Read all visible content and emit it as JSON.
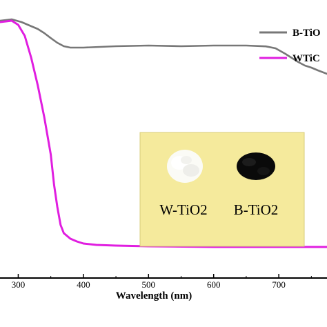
{
  "chart_data": {
    "type": "line",
    "title": "",
    "xlabel": "Wavelength (nm)",
    "ylabel": "",
    "xlim": [
      272,
      774
    ],
    "ylim": [
      0,
      1
    ],
    "x_ticks": [
      300,
      400,
      500,
      600,
      700
    ],
    "grid": false,
    "legend": {
      "placement": "top-right"
    },
    "series": [
      {
        "name": "B-TiO",
        "color": "#777777",
        "x": [
          272,
          290,
          305,
          320,
          330,
          340,
          350,
          360,
          370,
          380,
          400,
          450,
          500,
          550,
          600,
          650,
          680,
          695,
          710,
          720,
          730,
          740,
          750,
          760,
          774
        ],
        "y": [
          0.925,
          0.93,
          0.92,
          0.905,
          0.895,
          0.88,
          0.862,
          0.845,
          0.8325,
          0.8275,
          0.8275,
          0.8325,
          0.835,
          0.8325,
          0.835,
          0.835,
          0.832,
          0.825,
          0.805,
          0.79,
          0.775,
          0.7625,
          0.755,
          0.745,
          0.7325
        ]
      },
      {
        "name": "WTiC",
        "color": "#e01ee0",
        "x": [
          272,
          290,
          300,
          310,
          320,
          330,
          340,
          350,
          355,
          360,
          365,
          370,
          380,
          390,
          400,
          420,
          450,
          500,
          600,
          700,
          774
        ],
        "y": [
          0.92,
          0.925,
          0.91,
          0.87,
          0.79,
          0.69,
          0.575,
          0.44,
          0.33,
          0.25,
          0.185,
          0.155,
          0.135,
          0.125,
          0.1175,
          0.1125,
          0.11,
          0.1075,
          0.105,
          0.105,
          0.105
        ]
      }
    ],
    "inset_labels": [
      "W-TiO2",
      "B-TiO2"
    ]
  }
}
